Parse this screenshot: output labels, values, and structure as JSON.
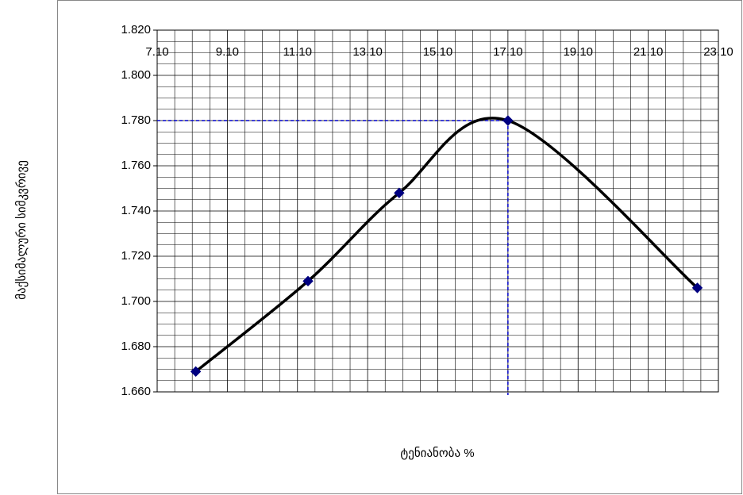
{
  "chart_data": {
    "type": "line",
    "x_label": "ტენიანობა %",
    "y_label": "მაქსიმალური  სიმკვრივე",
    "x": [
      8.2,
      11.4,
      14.0,
      17.1,
      22.5
    ],
    "series": [
      {
        "color": "#000000",
        "marker_color": "#000080",
        "values": [
          1.669,
          1.709,
          1.748,
          1.78,
          1.706
        ]
      }
    ],
    "xlim": [
      7.1,
      23.1
    ],
    "xticks": [
      {
        "value": 7.1,
        "label": "7.10"
      },
      {
        "value": 9.1,
        "label": "9.10"
      },
      {
        "value": 11.1,
        "label": "11.10"
      },
      {
        "value": 13.1,
        "label": "13.10"
      },
      {
        "value": 15.1,
        "label": "15.10"
      },
      {
        "value": 17.1,
        "label": "17.10"
      },
      {
        "value": 19.1,
        "label": "19.10"
      },
      {
        "value": 21.1,
        "label": "21.10"
      },
      {
        "value": 23.1,
        "label": "23.10"
      }
    ],
    "ylim": [
      1.66,
      1.82
    ],
    "yticks": [
      {
        "value": 1.66,
        "label": "1.660"
      },
      {
        "value": 1.68,
        "label": "1.680"
      },
      {
        "value": 1.7,
        "label": "1.700"
      },
      {
        "value": 1.72,
        "label": "1.720"
      },
      {
        "value": 1.74,
        "label": "1.740"
      },
      {
        "value": 1.76,
        "label": "1.760"
      },
      {
        "value": 1.78,
        "label": "1.780"
      },
      {
        "value": 1.8,
        "label": "1.800"
      },
      {
        "value": 1.82,
        "label": "1.820"
      }
    ],
    "grid": true,
    "minor_divisions": 4,
    "reference": {
      "x": 17.1,
      "y": 1.78,
      "color": "#0000cc"
    }
  }
}
